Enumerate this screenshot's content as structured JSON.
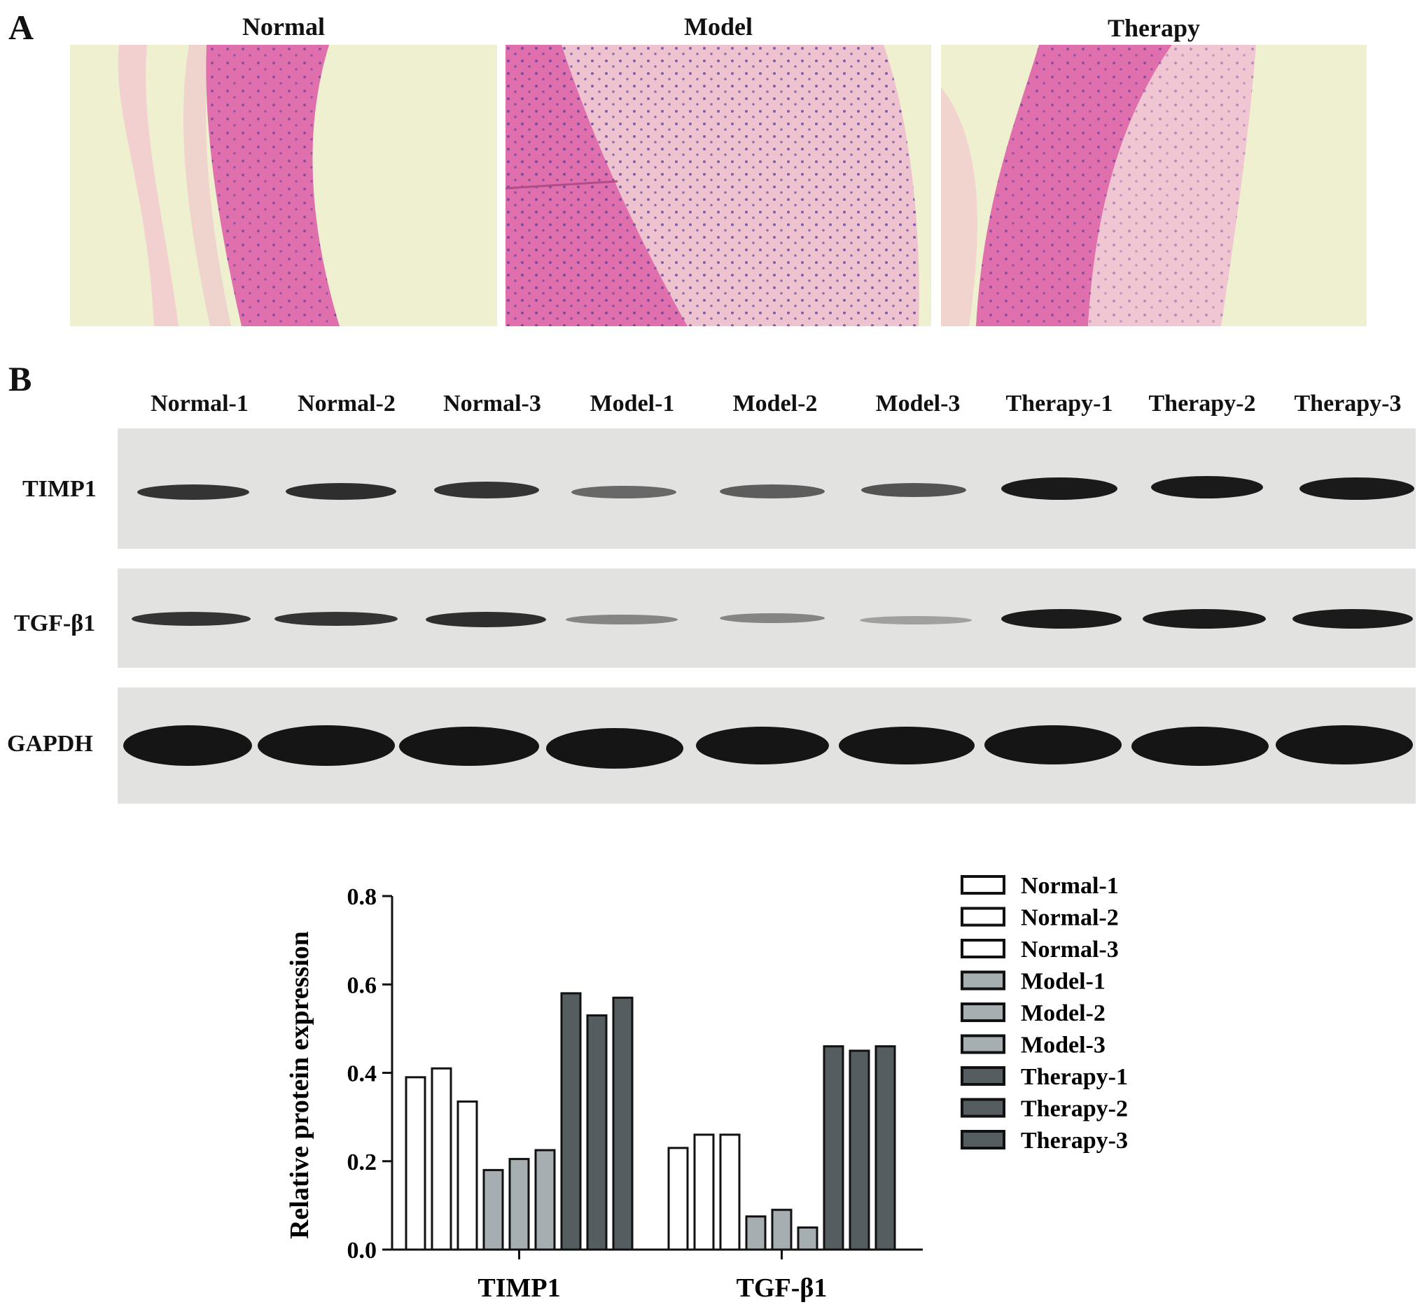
{
  "panel_a": {
    "letter": "A",
    "titles": [
      "Normal",
      "Model",
      "Therapy"
    ]
  },
  "panel_b": {
    "letter": "B",
    "lanes": [
      "Normal-1",
      "Normal-2",
      "Normal-3",
      "Model-1",
      "Model-2",
      "Model-3",
      "Therapy-1",
      "Therapy-2",
      "Therapy-3"
    ],
    "rows": [
      "TIMP1",
      "TGF-β1",
      "GAPDH"
    ]
  },
  "colors": {
    "normal": "#ffffff",
    "model": "#a6aeb2",
    "therapy": "#565d60",
    "bar_edge": "#111111",
    "tissue_pink": "#e070ad",
    "background_cream": "#eef0cf"
  },
  "chart_data": {
    "type": "bar",
    "categories": [
      "TIMP1",
      "TGF-β1"
    ],
    "series": [
      {
        "name": "Normal-1",
        "values": [
          0.39,
          0.23
        ]
      },
      {
        "name": "Normal-2",
        "values": [
          0.41,
          0.26
        ]
      },
      {
        "name": "Normal-3",
        "values": [
          0.335,
          0.26
        ]
      },
      {
        "name": "Model-1",
        "values": [
          0.18,
          0.075
        ]
      },
      {
        "name": "Model-2",
        "values": [
          0.205,
          0.09
        ]
      },
      {
        "name": "Model-3",
        "values": [
          0.225,
          0.05
        ]
      },
      {
        "name": "Therapy-1",
        "values": [
          0.58,
          0.46
        ]
      },
      {
        "name": "Therapy-2",
        "values": [
          0.53,
          0.45
        ]
      },
      {
        "name": "Therapy-3",
        "values": [
          0.57,
          0.46
        ]
      }
    ],
    "ylabel": "Relative protein expression",
    "ylim": [
      0,
      0.8
    ],
    "yticks": [
      "0.0",
      "0.2",
      "0.4",
      "0.6",
      "0.8"
    ],
    "legend_position": "right"
  }
}
